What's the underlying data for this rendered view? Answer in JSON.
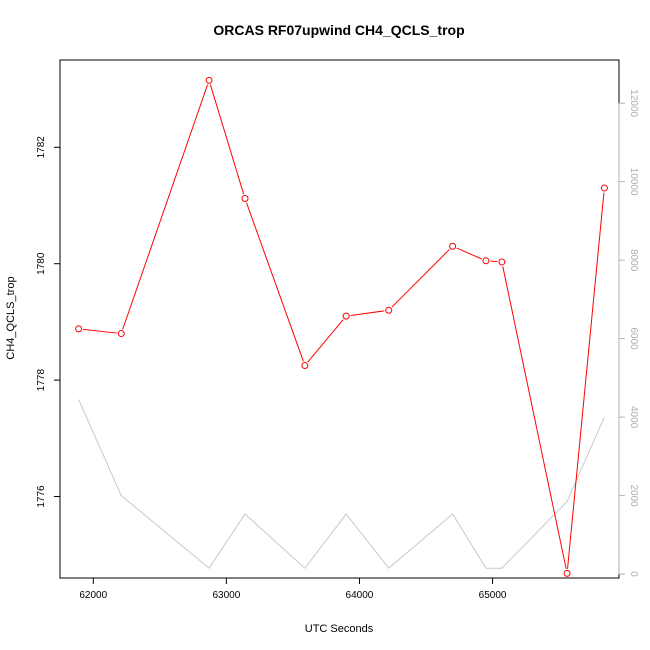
{
  "chart_data": {
    "type": "line",
    "title": "ORCAS RF07upwind CH4_QCLS_trop",
    "xlabel": "UTC Seconds",
    "ylabel": "CH4_QCLS_trop",
    "xlim": [
      61750,
      65950
    ],
    "ylim": [
      1774.6,
      1783.5
    ],
    "y2lim": [
      -100,
      13100
    ],
    "x_ticks": [
      "62000",
      "63000",
      "64000",
      "65000"
    ],
    "x_tick_values": [
      62000,
      63000,
      64000,
      65000
    ],
    "y_ticks": [
      "1776",
      "1778",
      "1780",
      "1782"
    ],
    "y_tick_values": [
      1776,
      1778,
      1780,
      1782
    ],
    "y2_ticks": [
      "0",
      "2000",
      "4000",
      "6000",
      "8000",
      "10000",
      "12000"
    ],
    "y2_tick_values": [
      0,
      2000,
      4000,
      6000,
      8000,
      10000,
      12000
    ],
    "colors": {
      "primary": "#ff0000",
      "secondary": "#c8c8c8",
      "right_axis": "#b0b0b0"
    },
    "grid": false,
    "series": [
      {
        "axis": "left",
        "style": "line+points",
        "x": [
          61890,
          62210,
          62870,
          63140,
          63590,
          63900,
          64220,
          64700,
          64950,
          65070,
          65560,
          65840
        ],
        "y": [
          1778.88,
          1778.8,
          1783.15,
          1781.12,
          1778.25,
          1779.1,
          1779.2,
          1780.3,
          1780.05,
          1780.03,
          1774.68,
          1781.3
        ]
      },
      {
        "axis": "right",
        "style": "line",
        "x": [
          61890,
          62210,
          62870,
          63140,
          63590,
          63900,
          64220,
          64700,
          64950,
          65070,
          65560,
          65840
        ],
        "y": [
          4450,
          2000,
          150,
          1530,
          150,
          1530,
          150,
          1530,
          150,
          150,
          1850,
          4000
        ]
      }
    ]
  }
}
